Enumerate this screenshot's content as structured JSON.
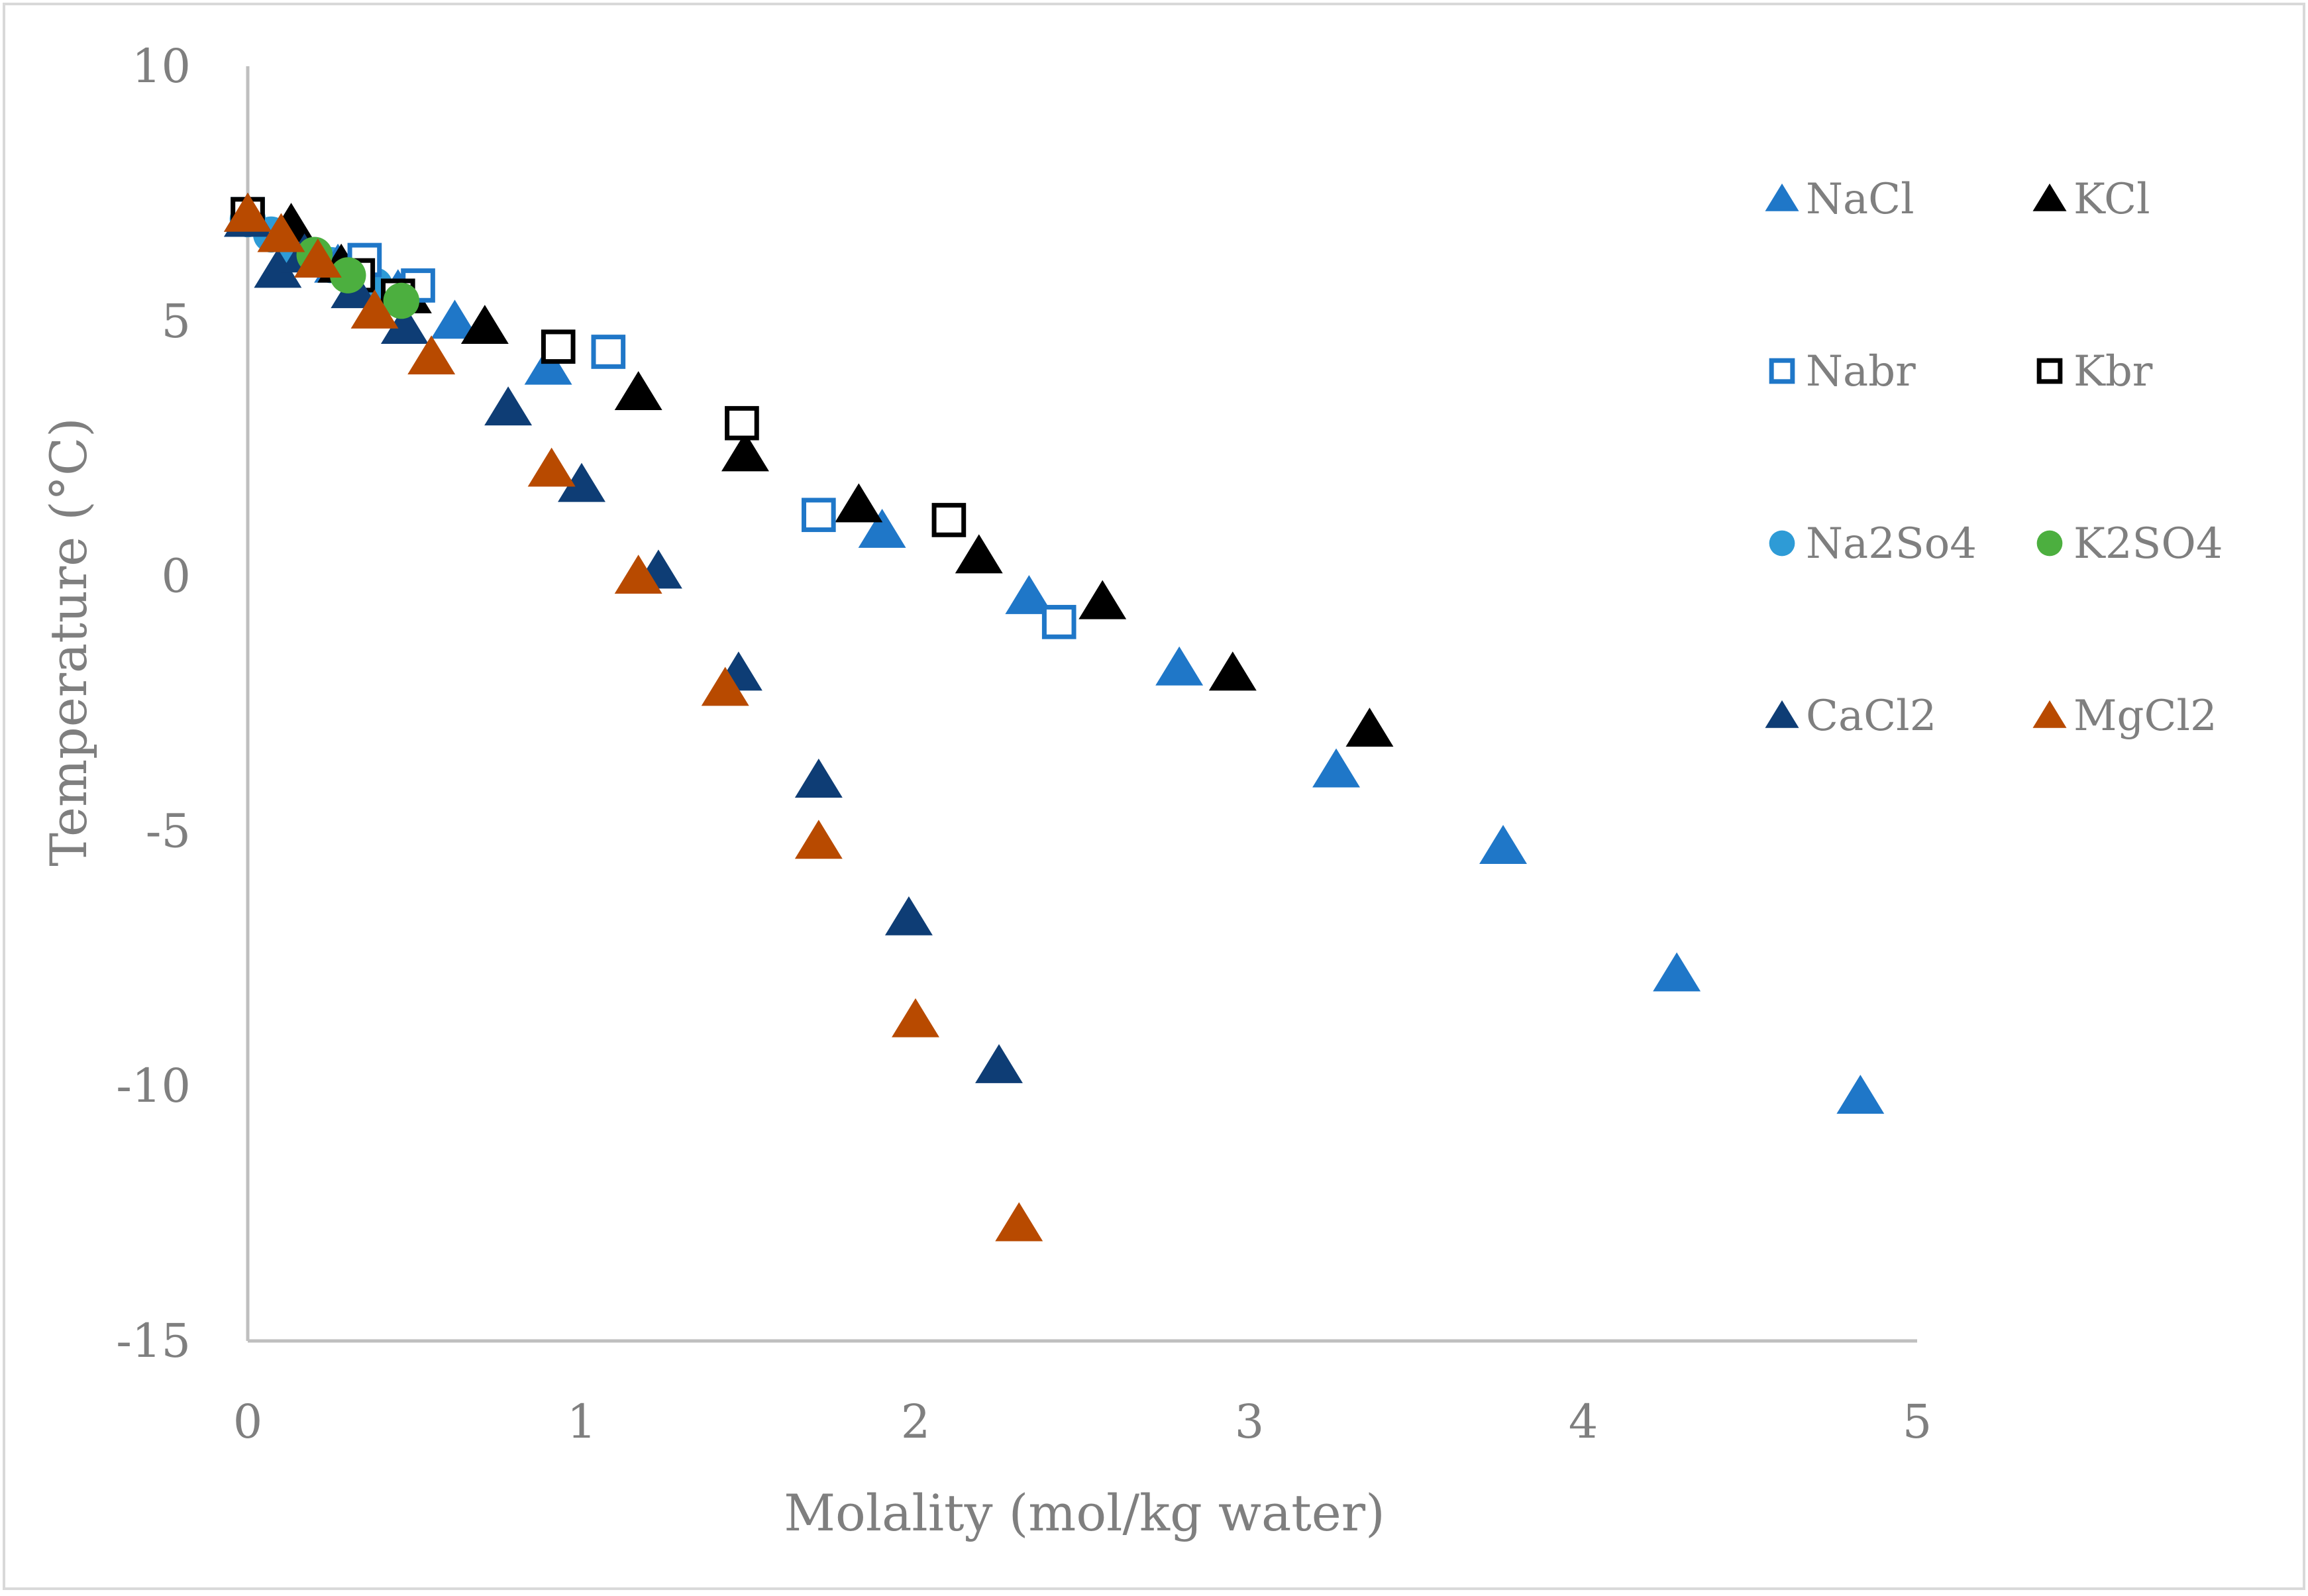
{
  "chart_data": {
    "type": "scatter",
    "title": "",
    "xlabel": "Molality (mol/kg water)",
    "ylabel": "Temperature (°C)",
    "xlim": [
      0,
      5
    ],
    "ylim": [
      -15,
      10
    ],
    "x_ticks": [
      0,
      1,
      2,
      3,
      4,
      5
    ],
    "y_ticks": [
      -15,
      -10,
      -5,
      0,
      5,
      10
    ],
    "x_tick_labels": [
      "0",
      "1",
      "2",
      "3",
      "4",
      "5"
    ],
    "y_tick_labels": [
      "-15",
      "-10",
      "-5",
      "0",
      "5",
      "10"
    ],
    "grid": false,
    "legend_position": "right",
    "series": [
      {
        "name": "NaCl",
        "marker": "triangle-filled",
        "color": "#1F77C8",
        "points": [
          [
            0.0,
            7.0
          ],
          [
            0.27,
            6.1
          ],
          [
            0.45,
            5.6
          ],
          [
            0.62,
            5.0
          ],
          [
            0.9,
            4.1
          ],
          [
            1.9,
            0.9
          ],
          [
            2.34,
            -0.4
          ],
          [
            2.79,
            -1.8
          ],
          [
            3.26,
            -3.8
          ],
          [
            3.76,
            -5.3
          ],
          [
            4.28,
            -7.8
          ],
          [
            4.83,
            -10.2
          ]
        ]
      },
      {
        "name": "KCl",
        "marker": "triangle-filled",
        "color": "#000000",
        "points": [
          [
            0.0,
            7.1
          ],
          [
            0.13,
            6.9
          ],
          [
            0.28,
            6.1
          ],
          [
            0.48,
            5.5
          ],
          [
            0.71,
            4.9
          ],
          [
            1.17,
            3.6
          ],
          [
            1.49,
            2.4
          ],
          [
            1.83,
            1.4
          ],
          [
            2.19,
            0.4
          ],
          [
            2.56,
            -0.5
          ],
          [
            2.95,
            -1.9
          ],
          [
            3.36,
            -3.0
          ]
        ]
      },
      {
        "name": "Nabr",
        "marker": "square-open",
        "color": "#1F77C8",
        "points": [
          [
            0.0,
            7.1
          ],
          [
            0.35,
            6.2
          ],
          [
            0.51,
            5.7
          ],
          [
            1.08,
            4.4
          ],
          [
            1.71,
            1.2
          ],
          [
            2.43,
            -0.9
          ]
        ]
      },
      {
        "name": "Kbr",
        "marker": "square-open",
        "color": "#000000",
        "points": [
          [
            0.0,
            7.1
          ],
          [
            0.33,
            5.9
          ],
          [
            0.45,
            5.5
          ],
          [
            0.93,
            4.5
          ],
          [
            1.48,
            3.0
          ],
          [
            2.1,
            1.1
          ]
        ]
      },
      {
        "name": "Na2So4",
        "marker": "circle-filled",
        "color": "#2E9BD6",
        "points": [
          [
            0.0,
            7.0
          ],
          [
            0.07,
            6.7
          ],
          [
            0.15,
            6.4
          ],
          [
            0.25,
            6.1
          ],
          [
            0.38,
            5.7
          ]
        ]
      },
      {
        "name": "K2SO4",
        "marker": "circle-filled",
        "color": "#4CAF3F",
        "points": [
          [
            0.2,
            6.3
          ],
          [
            0.3,
            5.9
          ],
          [
            0.46,
            5.4
          ]
        ]
      },
      {
        "name": "CaCl2",
        "marker": "triangle-filled",
        "color": "#0E3D75",
        "points": [
          [
            0.0,
            7.0
          ],
          [
            0.09,
            6.0
          ],
          [
            0.17,
            6.3
          ],
          [
            0.32,
            5.6
          ],
          [
            0.47,
            4.9
          ],
          [
            0.78,
            3.3
          ],
          [
            1.0,
            1.8
          ],
          [
            1.23,
            0.1
          ],
          [
            1.47,
            -1.9
          ],
          [
            1.71,
            -4.0
          ],
          [
            1.98,
            -6.7
          ],
          [
            2.25,
            -9.6
          ]
        ]
      },
      {
        "name": "MgCl2",
        "marker": "triangle-filled",
        "color": "#B84A00",
        "points": [
          [
            0.0,
            7.1
          ],
          [
            0.1,
            6.7
          ],
          [
            0.21,
            6.2
          ],
          [
            0.38,
            5.2
          ],
          [
            0.55,
            4.3
          ],
          [
            0.91,
            2.1
          ],
          [
            1.17,
            0.0
          ],
          [
            1.43,
            -2.2
          ],
          [
            1.71,
            -5.2
          ],
          [
            2.0,
            -8.7
          ],
          [
            2.31,
            -12.7
          ]
        ]
      }
    ]
  }
}
